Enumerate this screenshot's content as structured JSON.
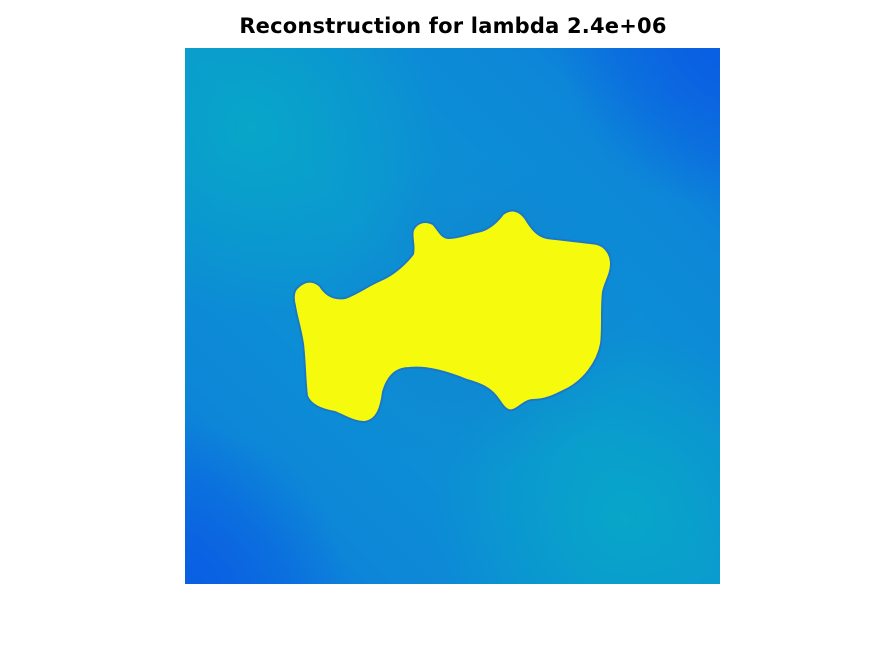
{
  "chart_data": {
    "type": "heatmap",
    "title": "Reconstruction for lambda 2.4e+06",
    "axes_visible": false,
    "colormap": "parula",
    "colors": {
      "background_low": "#0b62e0",
      "background_mid": "#0d8fd4",
      "background_teal": "#07a5c9",
      "inclusion": "#f6fa0d",
      "inclusion_edge": "#1a78c9"
    },
    "regions": [
      {
        "name": "background",
        "relative_value": 0.3
      },
      {
        "name": "inclusion",
        "relative_value": 1.0
      }
    ]
  }
}
